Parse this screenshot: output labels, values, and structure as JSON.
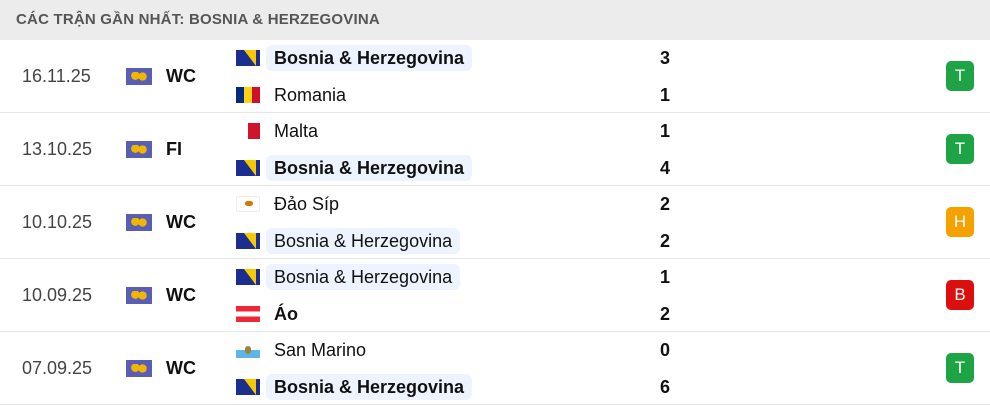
{
  "header": {
    "title": "CÁC TRẬN GẦN NHẤT: BOSNIA & HERZEGOVINA"
  },
  "result_colors": {
    "T": "#1ea444",
    "H": "#f5a100",
    "B": "#dc0f0f"
  },
  "matches": [
    {
      "date": "16.11.25",
      "competition": "WC",
      "home": {
        "name": "Bosnia & Herzegovina",
        "flag": "bih",
        "highlight": true,
        "bold": true
      },
      "away": {
        "name": "Romania",
        "flag": "rou",
        "highlight": false,
        "bold": false
      },
      "home_score": "3",
      "away_score": "1",
      "result": "T"
    },
    {
      "date": "13.10.25",
      "competition": "FI",
      "home": {
        "name": "Malta",
        "flag": "mlt",
        "highlight": false,
        "bold": false
      },
      "away": {
        "name": "Bosnia & Herzegovina",
        "flag": "bih",
        "highlight": true,
        "bold": true
      },
      "home_score": "1",
      "away_score": "4",
      "result": "T"
    },
    {
      "date": "10.10.25",
      "competition": "WC",
      "home": {
        "name": "Đảo Síp",
        "flag": "cyp",
        "highlight": false,
        "bold": false
      },
      "away": {
        "name": "Bosnia & Herzegovina",
        "flag": "bih",
        "highlight": true,
        "bold": false
      },
      "home_score": "2",
      "away_score": "2",
      "result": "H"
    },
    {
      "date": "10.09.25",
      "competition": "WC",
      "home": {
        "name": "Bosnia & Herzegovina",
        "flag": "bih",
        "highlight": true,
        "bold": false
      },
      "away": {
        "name": "Áo",
        "flag": "aut",
        "highlight": false,
        "bold": true
      },
      "home_score": "1",
      "away_score": "2",
      "result": "B"
    },
    {
      "date": "07.09.25",
      "competition": "WC",
      "home": {
        "name": "San Marino",
        "flag": "smr",
        "highlight": false,
        "bold": false
      },
      "away": {
        "name": "Bosnia & Herzegovina",
        "flag": "bih",
        "highlight": true,
        "bold": true
      },
      "home_score": "0",
      "away_score": "6",
      "result": "T"
    }
  ]
}
